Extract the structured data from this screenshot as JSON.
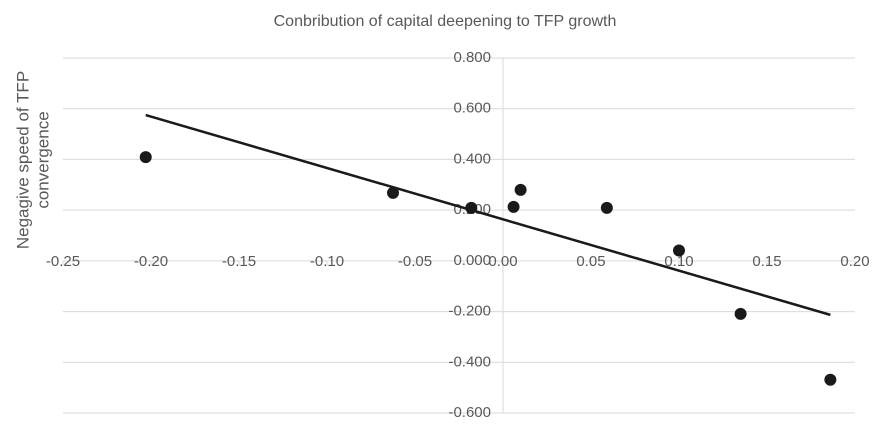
{
  "chart_data": {
    "type": "scatter",
    "title": "Conbribution of capital deepening to TFP growth",
    "ylabel": [
      "Negagive speed of TFP",
      "convergence"
    ],
    "x": [
      -0.203,
      -0.0625,
      -0.018,
      0.006,
      0.01,
      0.059,
      0.1,
      0.135,
      0.186
    ],
    "values": [
      0.409,
      0.268,
      0.209,
      0.213,
      0.28,
      0.209,
      0.041,
      -0.209,
      -0.469
    ],
    "color": "#1a1a1a",
    "trendline": {
      "x": [
        -0.203,
        0.186
      ],
      "y": [
        0.575,
        -0.213
      ],
      "color": "#1a1a1a"
    },
    "xlim": [
      -0.25,
      0.2
    ],
    "ylim": [
      -0.6,
      0.8
    ],
    "xticks": [
      {
        "value": -0.25,
        "label": "-0.25"
      },
      {
        "value": -0.2,
        "label": "-0.20"
      },
      {
        "value": -0.15,
        "label": "-0.15"
      },
      {
        "value": -0.1,
        "label": "-0.10"
      },
      {
        "value": -0.05,
        "label": "-0.05"
      },
      {
        "value": 0,
        "label": "0.00"
      },
      {
        "value": 0.05,
        "label": "0.05"
      },
      {
        "value": 0.1,
        "label": "0.10"
      },
      {
        "value": 0.15,
        "label": "0.15"
      },
      {
        "value": 0.2,
        "label": "0.20"
      }
    ],
    "yticks": [
      {
        "value": -0.6,
        "label": "-0.600"
      },
      {
        "value": -0.4,
        "label": "-0.400"
      },
      {
        "value": -0.2,
        "label": "-0.200"
      },
      {
        "value": 0,
        "label": "0.000"
      },
      {
        "value": 0.2,
        "label": "0.200"
      },
      {
        "value": 0.4,
        "label": "0.400"
      },
      {
        "value": 0.6,
        "label": "0.600"
      },
      {
        "value": 0.8,
        "label": "0.800"
      }
    ],
    "grid": true
  }
}
